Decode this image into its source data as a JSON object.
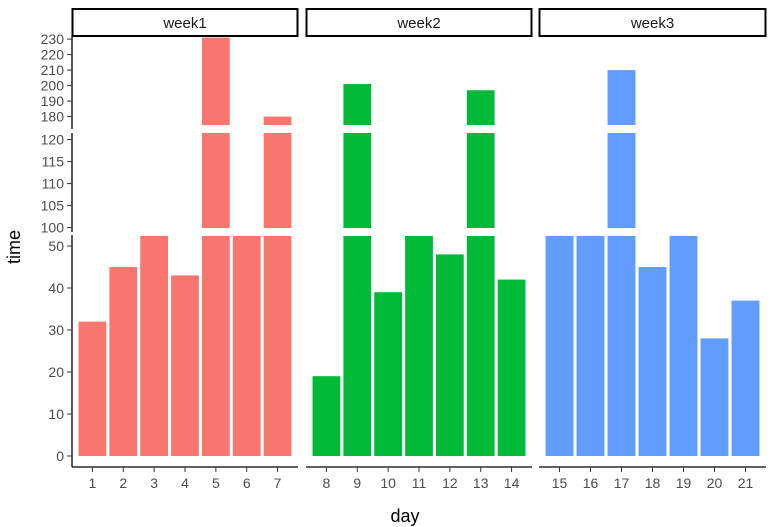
{
  "chart_data": {
    "type": "bar",
    "title": "",
    "xlabel": "day",
    "ylabel": "time",
    "grid": false,
    "legend": "none",
    "facet_by": "week",
    "y_break_segments": [
      {
        "range": [
          0,
          52.5
        ],
        "ticks": [
          0,
          10,
          20,
          30,
          40,
          50
        ]
      },
      {
        "range": [
          99,
          121.5
        ],
        "ticks": [
          100,
          105,
          110,
          115,
          120
        ]
      },
      {
        "range": [
          172,
          232
        ],
        "ticks": [
          180,
          190,
          200,
          210,
          220,
          230
        ]
      }
    ],
    "panels": [
      {
        "label": "week1",
        "color": "#F8766D",
        "categories": [
          "1",
          "2",
          "3",
          "4",
          "5",
          "6",
          "7"
        ],
        "values": [
          32,
          45,
          60,
          43,
          231,
          60,
          180
        ],
        "exceeds_lower_segment": [
          false,
          false,
          true,
          false,
          true,
          true,
          true
        ]
      },
      {
        "label": "week2",
        "color": "#00BA38",
        "categories": [
          "8",
          "9",
          "10",
          "11",
          "12",
          "13",
          "14"
        ],
        "values": [
          19,
          201,
          39,
          60,
          48,
          197,
          42
        ],
        "exceeds_lower_segment": [
          false,
          true,
          false,
          true,
          false,
          true,
          false
        ]
      },
      {
        "label": "week3",
        "color": "#619CFF",
        "categories": [
          "15",
          "16",
          "17",
          "18",
          "19",
          "20",
          "21"
        ],
        "values": [
          60,
          60,
          210,
          45,
          60,
          28,
          37
        ],
        "exceeds_lower_segment": [
          true,
          true,
          true,
          false,
          true,
          false,
          false
        ]
      }
    ]
  }
}
